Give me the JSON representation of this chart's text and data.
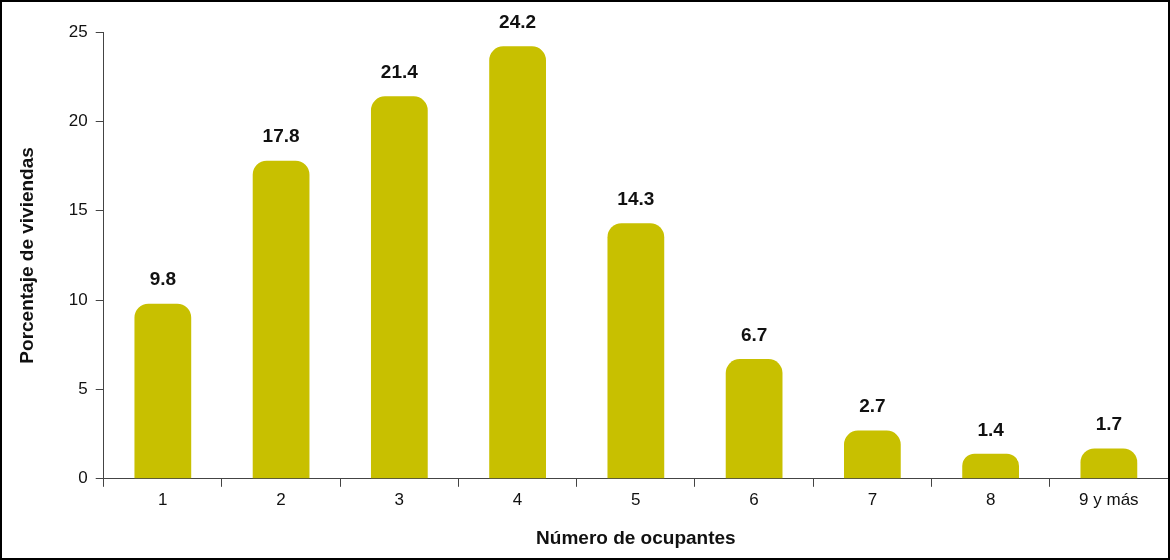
{
  "chart_data": {
    "type": "bar",
    "xlabel": "Número de ocupantes",
    "ylabel": "Porcentaje de viviendas",
    "categories": [
      "1",
      "2",
      "3",
      "4",
      "5",
      "6",
      "7",
      "8",
      "9 y más"
    ],
    "values": [
      9.8,
      17.8,
      21.4,
      24.2,
      14.3,
      6.7,
      2.7,
      1.4,
      1.7
    ],
    "color": "#c8c000",
    "ylim": [
      0,
      25
    ],
    "yticks": [
      0,
      5,
      10,
      15,
      20,
      25
    ],
    "grid": false,
    "legend": false,
    "data_labels": true
  }
}
